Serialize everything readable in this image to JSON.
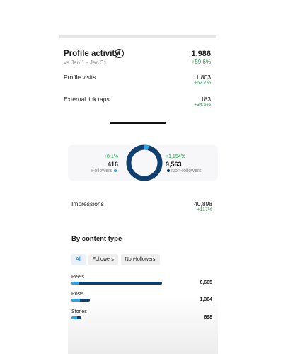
{
  "colors": {
    "accent_dark": "#0f3f6e",
    "accent_light": "#2aa3e6",
    "positive": "#2e9d4d"
  },
  "profile_activity": {
    "title": "Profile activity",
    "info_icon": "ⓘ",
    "date_range": "vs Jan 1 - Jan 31",
    "total": "1,986",
    "total_change": "+59.6%",
    "rows": [
      {
        "label": "Profile visits",
        "value": "1,803",
        "change": "+62.7%"
      },
      {
        "label": "External link taps",
        "value": "183",
        "change": "+34.5%"
      }
    ]
  },
  "audience": {
    "followers": {
      "change": "+8.1%",
      "count": "416",
      "label": "Followers"
    },
    "non_followers": {
      "change": "+1,154%",
      "count": "9,563",
      "label": "Non-followers"
    },
    "follower_fraction": 0.042
  },
  "impressions": {
    "label": "Impressions",
    "value": "40,898",
    "change": "+117%"
  },
  "content_type": {
    "title": "By content type",
    "filters": [
      {
        "label": "All",
        "active": true
      },
      {
        "label": "Followers",
        "active": false
      },
      {
        "label": "Non-followers",
        "active": false
      }
    ],
    "items": [
      {
        "label": "Reels",
        "value": "6,665",
        "raw": 6665,
        "follower_fraction": 0.08
      },
      {
        "label": "Posts",
        "value": "1,364",
        "raw": 1364,
        "follower_fraction": 0.45
      },
      {
        "label": "Stories",
        "value": "698",
        "raw": 698,
        "follower_fraction": 0.6
      }
    ]
  }
}
